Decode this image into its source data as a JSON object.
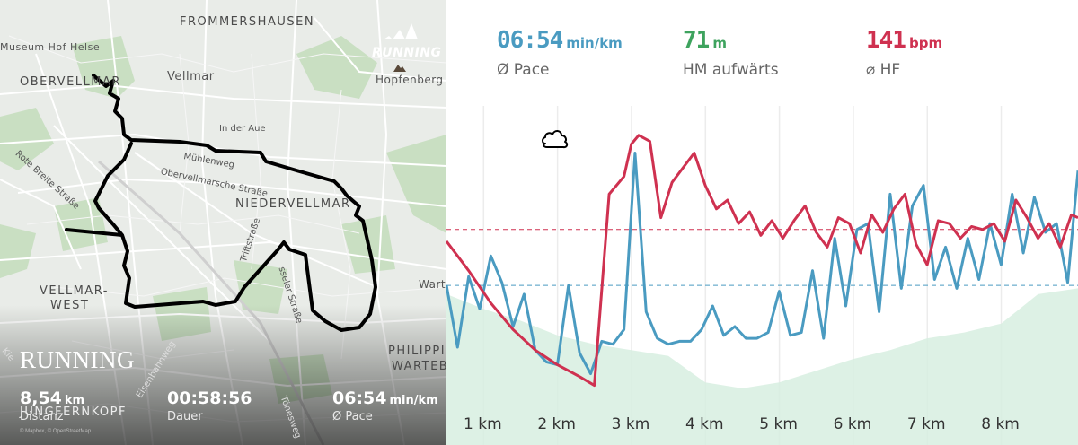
{
  "map": {
    "places": {
      "frommershausen": "FROMMERSHAUSEN",
      "museum": "Museum Hof Helse",
      "obervellmar": "OBERVELLMAR",
      "vellmar": "Vellmar",
      "hopfenberg": "Hopfenberg",
      "in_der_aue": "In der Aue",
      "rote_breite": "Rote Breite Straße",
      "muehlenweg": "Mühlenweg",
      "obervellmarsche": "Obervellmarsche Straße",
      "niedervellmar": "NIEDERVELLMAR",
      "triftstrasse": "Triftstraße",
      "kasseler": "sseler Straße",
      "vellmar_west_1": "VELLMAR-",
      "vellmar_west_2": "WEST",
      "warte": "Warte",
      "philippinen_1": "PHILIPPINEN",
      "philippinen_2": "WARTEB",
      "kie": "Kie",
      "jungfernkopf": "JUNGFERNKOPF",
      "eisenbahnweg": "Eisenbahnweg",
      "toenesweg": "Tönesweg"
    },
    "title": "RUNNING",
    "brand_label": "RUNNING",
    "attribution": "© Mapbox, © OpenStreetMap",
    "stats": [
      {
        "value": "8,54",
        "unit": "km",
        "label": "Distanz"
      },
      {
        "value": "00:58:56",
        "unit": "",
        "label": "Dauer"
      },
      {
        "value": "06:54",
        "unit": "min/km",
        "label": "Ø Pace"
      }
    ]
  },
  "summary": [
    {
      "value": "06:54",
      "unit": "min/km",
      "label": "Ø Pace",
      "color": "#4a9bc1"
    },
    {
      "value": "71",
      "unit": "m",
      "label": "HM aufwärts",
      "color": "#3ea35e"
    },
    {
      "value": "141",
      "unit": "bpm",
      "label": "⌀ HF",
      "color": "#cf3150"
    }
  ],
  "chart_data": {
    "type": "line",
    "x_unit": "km",
    "xlim": [
      0,
      8.54
    ],
    "ticks": [
      "1 km",
      "2 km",
      "3 km",
      "4 km",
      "5 km",
      "6 km",
      "7 km",
      "8 km"
    ],
    "grid": "vertical",
    "icon": "cloud-icon",
    "series": [
      {
        "color": "#cf3150",
        "dashed_reference": 0.58,
        "x": [
          0,
          0.3,
          0.6,
          0.9,
          1.2,
          1.5,
          1.8,
          2.0,
          2.2,
          2.4,
          2.5,
          2.6,
          2.75,
          2.9,
          3.05,
          3.2,
          3.35,
          3.5,
          3.65,
          3.8,
          3.95,
          4.1,
          4.25,
          4.4,
          4.55,
          4.7,
          4.85,
          5.0,
          5.15,
          5.3,
          5.45,
          5.6,
          5.75,
          5.9,
          6.05,
          6.2,
          6.35,
          6.5,
          6.65,
          6.8,
          6.95,
          7.1,
          7.25,
          7.4,
          7.55,
          7.7,
          7.85,
          8.0,
          8.15,
          8.3,
          8.45,
          8.54
        ],
        "y": [
          0.54,
          0.44,
          0.33,
          0.24,
          0.17,
          0.12,
          0.08,
          0.05,
          0.7,
          0.76,
          0.87,
          0.9,
          0.88,
          0.62,
          0.74,
          0.79,
          0.84,
          0.73,
          0.65,
          0.68,
          0.6,
          0.64,
          0.56,
          0.61,
          0.55,
          0.61,
          0.66,
          0.57,
          0.52,
          0.62,
          0.6,
          0.5,
          0.63,
          0.57,
          0.65,
          0.7,
          0.53,
          0.46,
          0.61,
          0.6,
          0.55,
          0.59,
          0.58,
          0.6,
          0.54,
          0.68,
          0.62,
          0.55,
          0.6,
          0.52,
          0.63,
          0.62
        ]
      },
      {
        "color": "#4a9bc1",
        "dashed_reference": 0.39,
        "x": [
          0,
          0.15,
          0.3,
          0.45,
          0.6,
          0.75,
          0.9,
          1.05,
          1.2,
          1.35,
          1.5,
          1.65,
          1.8,
          1.95,
          2.1,
          2.25,
          2.4,
          2.55,
          2.7,
          2.85,
          3.0,
          3.15,
          3.3,
          3.45,
          3.6,
          3.75,
          3.9,
          4.05,
          4.2,
          4.35,
          4.5,
          4.65,
          4.8,
          4.95,
          5.1,
          5.25,
          5.4,
          5.55,
          5.7,
          5.85,
          6.0,
          6.15,
          6.3,
          6.45,
          6.6,
          6.75,
          6.9,
          7.05,
          7.2,
          7.35,
          7.5,
          7.65,
          7.8,
          7.95,
          8.1,
          8.25,
          8.4,
          8.54
        ],
        "y": [
          0.39,
          0.18,
          0.42,
          0.31,
          0.49,
          0.4,
          0.25,
          0.36,
          0.17,
          0.13,
          0.12,
          0.39,
          0.16,
          0.09,
          0.2,
          0.19,
          0.24,
          0.84,
          0.3,
          0.21,
          0.19,
          0.2,
          0.2,
          0.24,
          0.32,
          0.22,
          0.25,
          0.21,
          0.21,
          0.23,
          0.37,
          0.22,
          0.23,
          0.44,
          0.21,
          0.55,
          0.32,
          0.58,
          0.6,
          0.3,
          0.7,
          0.38,
          0.66,
          0.73,
          0.41,
          0.52,
          0.38,
          0.55,
          0.41,
          0.6,
          0.46,
          0.7,
          0.5,
          0.69,
          0.57,
          0.6,
          0.4,
          0.78
        ]
      },
      {
        "type": "area",
        "color": "#d7eee0",
        "x": [
          0,
          0.5,
          1.0,
          1.5,
          2.0,
          2.5,
          3.0,
          3.5,
          4.0,
          4.5,
          5.0,
          5.5,
          6.0,
          6.5,
          7.0,
          7.5,
          8.0,
          8.54
        ],
        "y": [
          0.36,
          0.31,
          0.27,
          0.22,
          0.19,
          0.17,
          0.15,
          0.06,
          0.04,
          0.06,
          0.1,
          0.14,
          0.17,
          0.21,
          0.23,
          0.26,
          0.36,
          0.38
        ]
      }
    ]
  }
}
